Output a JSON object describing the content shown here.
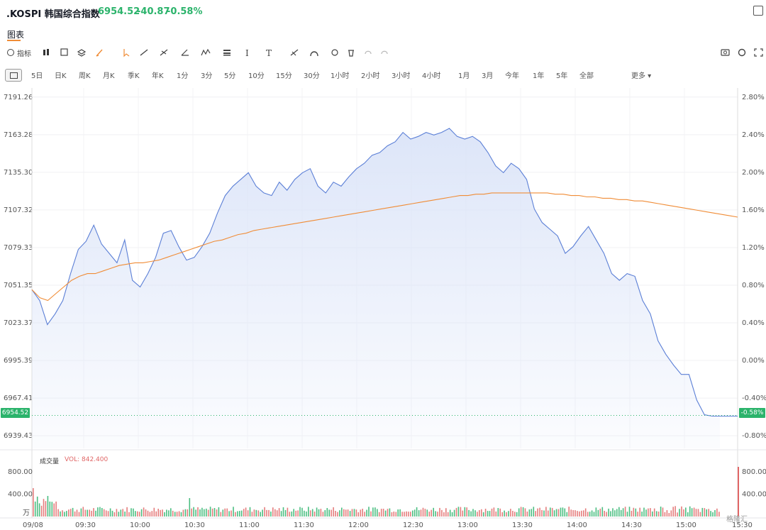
{
  "header": {
    "title": ".KOSPI 韩国综合指数",
    "price": "6954.52",
    "change": "-40.87",
    "change_pct": "-0.58%"
  },
  "tab": "图表",
  "toolbar": {
    "indicators_label": "指标"
  },
  "intervals": [
    "5日",
    "日K",
    "周K",
    "月K",
    "季K",
    "年K",
    "1分",
    "3分",
    "5分",
    "10分",
    "15分",
    "30分",
    "1小时",
    "2小时",
    "3小时",
    "4小时",
    "1月",
    "3月",
    "今年",
    "1年",
    "5年",
    "全部",
    "更多"
  ],
  "last_price_tag": "6954.52",
  "last_pct_tag": "-0.58%",
  "volume": {
    "label": "成交量",
    "value_label": "VOL: 842.400",
    "axis_ticks": [
      "800.00",
      "400.00"
    ],
    "unit": "万"
  },
  "watermark": "格隆汇",
  "colors": {
    "line": "#5b7fd6",
    "fill": "#dbe4f8",
    "avg": "#f08c36",
    "up": "#e06666",
    "down": "#2bb36b"
  },
  "chart_data": {
    "type": "line",
    "x_tick_labels": [
      "09/08",
      "09:30",
      "10:00",
      "10:30",
      "11:00",
      "11:30",
      "12:00",
      "12:30",
      "13:00",
      "13:30",
      "14:00",
      "14:30",
      "15:00",
      "15:30"
    ],
    "y_ticks_left": [
      "7191.26",
      "7163.28",
      "7135.30",
      "7107.32",
      "7079.33",
      "7051.35",
      "7023.37",
      "6995.39",
      "6967.41",
      "6939.43"
    ],
    "y_ticks_right": [
      "2.80%",
      "2.40%",
      "2.00%",
      "1.60%",
      "1.20%",
      "0.80%",
      "0.40%",
      "0.00%",
      "-0.40%",
      "-0.80%"
    ],
    "ylim": [
      6930,
      7198
    ],
    "series": [
      {
        "values": [
          7048,
          7040,
          7022,
          7030,
          7040,
          7060,
          7078,
          7084,
          7096,
          7082,
          7075,
          7068,
          7085,
          7055,
          7050,
          7060,
          7072,
          7090,
          7092,
          7080,
          7070,
          7072,
          7080,
          7090,
          7105,
          7118,
          7125,
          7130,
          7135,
          7125,
          7120,
          7118,
          7128,
          7122,
          7130,
          7135,
          7138,
          7125,
          7120,
          7128,
          7125,
          7132,
          7138,
          7142,
          7148,
          7150,
          7155,
          7158,
          7165,
          7160,
          7162,
          7165,
          7163,
          7165,
          7168,
          7162,
          7160,
          7162,
          7158,
          7150,
          7140,
          7135,
          7142,
          7138,
          7130,
          7108,
          7098,
          7093,
          7088,
          7075,
          7080,
          7088,
          7095,
          7085,
          7075,
          7060,
          7055,
          7060,
          7058,
          7040,
          7030,
          7010,
          7000,
          6992,
          6985,
          6985,
          6966,
          6955,
          6954,
          6954
        ]
      },
      {
        "values": [
          7048,
          7042,
          7040,
          7045,
          7050,
          7055,
          7058,
          7060,
          7060,
          7062,
          7064,
          7066,
          7067,
          7068,
          7068,
          7069,
          7070,
          7072,
          7074,
          7076,
          7078,
          7080,
          7082,
          7084,
          7085,
          7087,
          7089,
          7090,
          7092,
          7093,
          7094,
          7095,
          7096,
          7097,
          7098,
          7099,
          7100,
          7101,
          7102,
          7103,
          7104,
          7105,
          7106,
          7107,
          7108,
          7109,
          7110,
          7111,
          7112,
          7113,
          7114,
          7115,
          7116,
          7117,
          7118,
          7118,
          7119,
          7119,
          7120,
          7120,
          7120,
          7120,
          7120,
          7120,
          7120,
          7120,
          7119,
          7119,
          7118,
          7118,
          7117,
          7117,
          7116,
          7116,
          7115,
          7115,
          7114,
          7114,
          7113,
          7112,
          7111,
          7110,
          7109,
          7108,
          7107,
          7106,
          7105,
          7104,
          7103,
          7102
        ]
      }
    ]
  }
}
